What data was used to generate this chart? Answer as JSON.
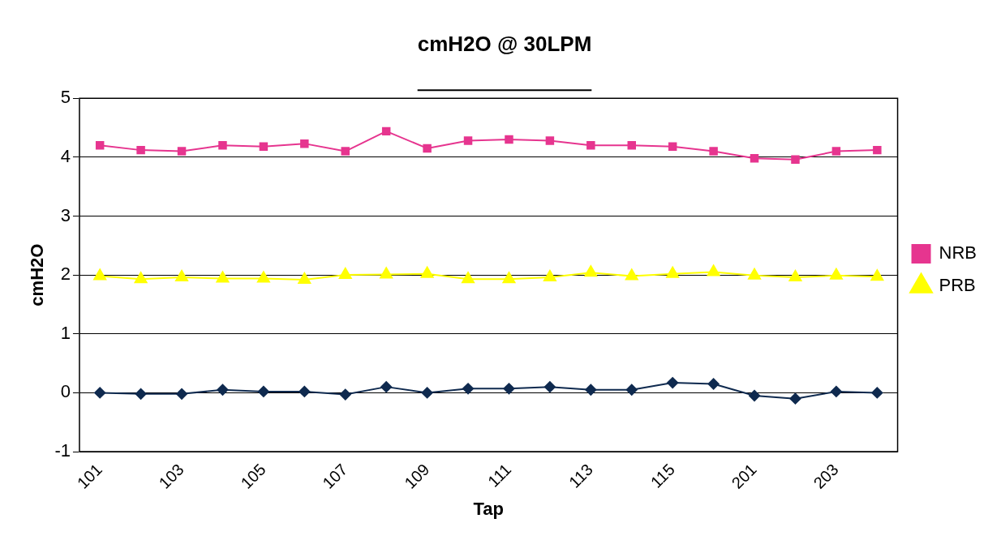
{
  "chart_data": {
    "type": "line",
    "title": "cmH2O @ 30LPM",
    "xlabel": "Tap",
    "ylabel": "cmH2O",
    "categories": [
      "101",
      null,
      "103",
      null,
      "105",
      null,
      "107",
      null,
      "109",
      null,
      "111",
      null,
      "113",
      null,
      "115",
      null,
      "201",
      null,
      "203",
      null
    ],
    "series": [
      {
        "color": "#0f2a4f",
        "marker": "diamond",
        "values": [
          0,
          -0.02,
          -0.02,
          0.05,
          0.02,
          0.02,
          -0.03,
          0.1,
          0,
          0.07,
          0.07,
          0.1,
          0.05,
          0.05,
          0.17,
          0.15,
          -0.05,
          -0.1,
          0.02,
          0
        ]
      },
      {
        "name": "NRB",
        "color": "#e6358f",
        "marker": "square",
        "values": [
          4.2,
          4.12,
          4.1,
          4.2,
          4.18,
          4.23,
          4.1,
          4.44,
          4.15,
          4.28,
          4.3,
          4.28,
          4.2,
          4.2,
          4.18,
          4.1,
          3.98,
          3.96,
          4.1,
          4.12
        ]
      },
      {
        "name": "PRB",
        "color": "#ffff00",
        "marker": "triangle",
        "values": [
          1.98,
          1.93,
          1.96,
          1.94,
          1.94,
          1.92,
          2.0,
          2.01,
          2.02,
          1.93,
          1.93,
          1.96,
          2.04,
          1.98,
          2.02,
          2.05,
          1.99,
          1.96,
          1.99,
          1.97
        ]
      }
    ],
    "ylim": [
      -1,
      5
    ],
    "yticks": [
      -1,
      0,
      1,
      2,
      3,
      4,
      5
    ],
    "grid": "y",
    "legend": "right"
  }
}
